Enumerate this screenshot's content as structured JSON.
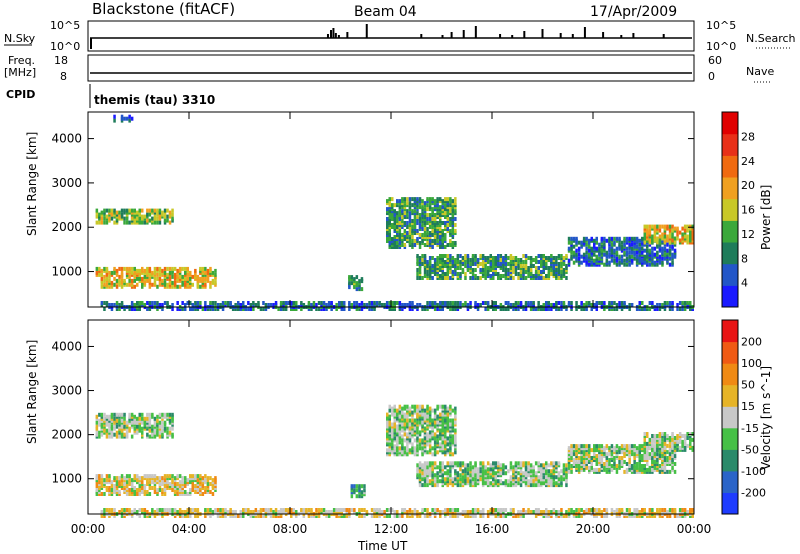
{
  "header": {
    "station": "Blackstone (fitACF)",
    "beam": "Beam 04",
    "date": "17/Apr/2009"
  },
  "top_panels": {
    "nsky_label": "N.Sky",
    "nsky_ticks": [
      "10^5",
      "10^0"
    ],
    "nsearch_label": "N.Search",
    "nsearch_ticks": [
      "10^5",
      "10^0"
    ],
    "freq_label": "Freq.",
    "freq_unit": "[MHz]",
    "freq_ticks": [
      "18",
      "8"
    ],
    "nave_label": "Nave",
    "nave_ticks": [
      "60",
      "0"
    ],
    "cpid_label": "CPID",
    "cpid_text": "themis (tau) 3310"
  },
  "axes": {
    "ylabel": "Slant Range [km]",
    "xlabel": "Time UT",
    "x_ticks": [
      "00:00",
      "04:00",
      "08:00",
      "12:00",
      "16:00",
      "20:00",
      "00:00"
    ],
    "y_ticks": [
      "4000",
      "3000",
      "2000",
      "1000"
    ]
  },
  "colors": {
    "power_scale": [
      "#1a1aff",
      "#2256c8",
      "#1e7c5a",
      "#3aa83a",
      "#c8c828",
      "#f0a020",
      "#f06a10",
      "#e83018",
      "#e00000"
    ],
    "velocity_scale": [
      "#1e3cff",
      "#2a64c8",
      "#2a8a6a",
      "#46c046",
      "#c8c8c8",
      "#e6b428",
      "#f08a14",
      "#f05a14",
      "#e81414"
    ]
  },
  "chart_data": [
    {
      "type": "heatmap",
      "name": "power-panel",
      "x_range_hours": [
        0,
        24
      ],
      "y_range_km": [
        200,
        4600
      ],
      "ylabel": "Slant Range [km]",
      "colorbar_label": "Power [dB]",
      "colorbar_ticks": [
        "28",
        "24",
        "20",
        "16",
        "12",
        "8",
        "4"
      ],
      "regions": [
        {
          "t": [
            0.3,
            3.4
          ],
          "r": [
            2150,
            2450
          ],
          "level": 4
        },
        {
          "t": [
            0.3,
            5.0
          ],
          "r": [
            700,
            1150
          ],
          "level": 5
        },
        {
          "t": [
            1.0,
            1.8
          ],
          "r": [
            4450,
            4550
          ],
          "level": 1
        },
        {
          "t": [
            10.3,
            10.8
          ],
          "r": [
            650,
            950
          ],
          "level": 3
        },
        {
          "t": [
            11.8,
            14.5
          ],
          "r": [
            1600,
            2700
          ],
          "level": 3
        },
        {
          "t": [
            13.0,
            19.0
          ],
          "r": [
            900,
            1400
          ],
          "level": 3
        },
        {
          "t": [
            19.0,
            23.3
          ],
          "r": [
            1200,
            1800
          ],
          "level": 2
        },
        {
          "t": [
            22.0,
            24.0
          ],
          "r": [
            1700,
            2100
          ],
          "level": 5
        },
        {
          "t": [
            0.5,
            24.0
          ],
          "r": [
            200,
            350
          ],
          "level": 2
        }
      ]
    },
    {
      "type": "heatmap",
      "name": "velocity-panel",
      "x_range_hours": [
        0,
        24
      ],
      "y_range_km": [
        200,
        4600
      ],
      "ylabel": "Slant Range [km]",
      "xlabel": "Time UT",
      "colorbar_label": "Velocity [m s^-1]",
      "colorbar_ticks": [
        "200",
        "100",
        "50",
        "15",
        "-15",
        "-50",
        "-100",
        "-200"
      ],
      "regions": [
        {
          "t": [
            0.3,
            3.4
          ],
          "r": [
            2000,
            2500
          ],
          "level": 4
        },
        {
          "t": [
            0.3,
            5.0
          ],
          "r": [
            700,
            1150
          ],
          "level": 5
        },
        {
          "t": [
            10.4,
            10.9
          ],
          "r": [
            650,
            900
          ],
          "level": 3
        },
        {
          "t": [
            11.8,
            14.5
          ],
          "r": [
            1600,
            2700
          ],
          "level": 4
        },
        {
          "t": [
            13.0,
            19.0
          ],
          "r": [
            900,
            1400
          ],
          "level": 4
        },
        {
          "t": [
            19.0,
            23.3
          ],
          "r": [
            1200,
            1800
          ],
          "level": 4
        },
        {
          "t": [
            22.0,
            24.0
          ],
          "r": [
            1700,
            2100
          ],
          "level": 4
        },
        {
          "t": [
            0.5,
            24.0
          ],
          "r": [
            200,
            350
          ],
          "level": 5
        }
      ]
    }
  ]
}
